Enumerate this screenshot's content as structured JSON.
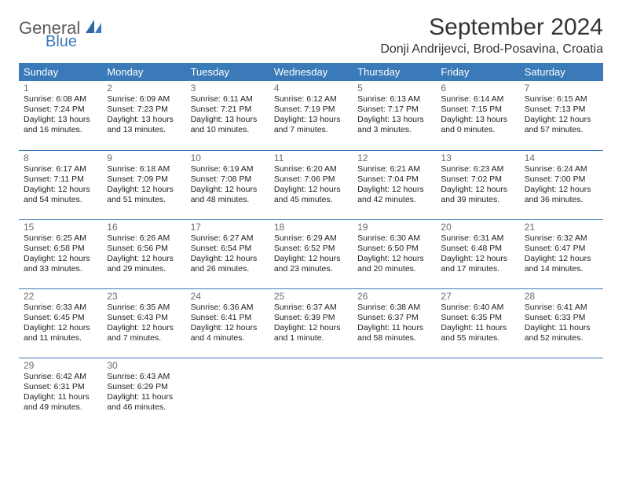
{
  "logo": {
    "word1": "General",
    "word2": "Blue"
  },
  "title": "September 2024",
  "location": "Donji Andrijevci, Brod-Posavina, Croatia",
  "colors": {
    "header_bg": "#3a7ab8",
    "header_text": "#ffffff",
    "divider": "#3a7ab8",
    "daynum": "#6b6b6b",
    "body_text": "#222222",
    "shade_bg": "#e3e3e3",
    "logo_gray": "#5a5a5a",
    "logo_blue": "#3a7ab8"
  },
  "day_headers": [
    "Sunday",
    "Monday",
    "Tuesday",
    "Wednesday",
    "Thursday",
    "Friday",
    "Saturday"
  ],
  "weeks": [
    [
      {
        "n": "1",
        "sr": "6:08 AM",
        "ss": "7:24 PM",
        "dl": "13 hours and 16 minutes."
      },
      {
        "n": "2",
        "sr": "6:09 AM",
        "ss": "7:23 PM",
        "dl": "13 hours and 13 minutes."
      },
      {
        "n": "3",
        "sr": "6:11 AM",
        "ss": "7:21 PM",
        "dl": "13 hours and 10 minutes."
      },
      {
        "n": "4",
        "sr": "6:12 AM",
        "ss": "7:19 PM",
        "dl": "13 hours and 7 minutes."
      },
      {
        "n": "5",
        "sr": "6:13 AM",
        "ss": "7:17 PM",
        "dl": "13 hours and 3 minutes."
      },
      {
        "n": "6",
        "sr": "6:14 AM",
        "ss": "7:15 PM",
        "dl": "13 hours and 0 minutes."
      },
      {
        "n": "7",
        "sr": "6:15 AM",
        "ss": "7:13 PM",
        "dl": "12 hours and 57 minutes."
      }
    ],
    [
      {
        "n": "8",
        "sr": "6:17 AM",
        "ss": "7:11 PM",
        "dl": "12 hours and 54 minutes."
      },
      {
        "n": "9",
        "sr": "6:18 AM",
        "ss": "7:09 PM",
        "dl": "12 hours and 51 minutes."
      },
      {
        "n": "10",
        "sr": "6:19 AM",
        "ss": "7:08 PM",
        "dl": "12 hours and 48 minutes."
      },
      {
        "n": "11",
        "sr": "6:20 AM",
        "ss": "7:06 PM",
        "dl": "12 hours and 45 minutes."
      },
      {
        "n": "12",
        "sr": "6:21 AM",
        "ss": "7:04 PM",
        "dl": "12 hours and 42 minutes."
      },
      {
        "n": "13",
        "sr": "6:23 AM",
        "ss": "7:02 PM",
        "dl": "12 hours and 39 minutes."
      },
      {
        "n": "14",
        "sr": "6:24 AM",
        "ss": "7:00 PM",
        "dl": "12 hours and 36 minutes."
      }
    ],
    [
      {
        "n": "15",
        "sr": "6:25 AM",
        "ss": "6:58 PM",
        "dl": "12 hours and 33 minutes."
      },
      {
        "n": "16",
        "sr": "6:26 AM",
        "ss": "6:56 PM",
        "dl": "12 hours and 29 minutes."
      },
      {
        "n": "17",
        "sr": "6:27 AM",
        "ss": "6:54 PM",
        "dl": "12 hours and 26 minutes."
      },
      {
        "n": "18",
        "sr": "6:29 AM",
        "ss": "6:52 PM",
        "dl": "12 hours and 23 minutes."
      },
      {
        "n": "19",
        "sr": "6:30 AM",
        "ss": "6:50 PM",
        "dl": "12 hours and 20 minutes."
      },
      {
        "n": "20",
        "sr": "6:31 AM",
        "ss": "6:48 PM",
        "dl": "12 hours and 17 minutes."
      },
      {
        "n": "21",
        "sr": "6:32 AM",
        "ss": "6:47 PM",
        "dl": "12 hours and 14 minutes."
      }
    ],
    [
      {
        "n": "22",
        "sr": "6:33 AM",
        "ss": "6:45 PM",
        "dl": "12 hours and 11 minutes."
      },
      {
        "n": "23",
        "sr": "6:35 AM",
        "ss": "6:43 PM",
        "dl": "12 hours and 7 minutes."
      },
      {
        "n": "24",
        "sr": "6:36 AM",
        "ss": "6:41 PM",
        "dl": "12 hours and 4 minutes."
      },
      {
        "n": "25",
        "sr": "6:37 AM",
        "ss": "6:39 PM",
        "dl": "12 hours and 1 minute."
      },
      {
        "n": "26",
        "sr": "6:38 AM",
        "ss": "6:37 PM",
        "dl": "11 hours and 58 minutes."
      },
      {
        "n": "27",
        "sr": "6:40 AM",
        "ss": "6:35 PM",
        "dl": "11 hours and 55 minutes."
      },
      {
        "n": "28",
        "sr": "6:41 AM",
        "ss": "6:33 PM",
        "dl": "11 hours and 52 minutes."
      }
    ],
    [
      {
        "n": "29",
        "sr": "6:42 AM",
        "ss": "6:31 PM",
        "dl": "11 hours and 49 minutes."
      },
      {
        "n": "30",
        "sr": "6:43 AM",
        "ss": "6:29 PM",
        "dl": "11 hours and 46 minutes."
      },
      null,
      null,
      null,
      null,
      null
    ]
  ],
  "labels": {
    "sunrise": "Sunrise: ",
    "sunset": "Sunset: ",
    "daylight": "Daylight: "
  }
}
